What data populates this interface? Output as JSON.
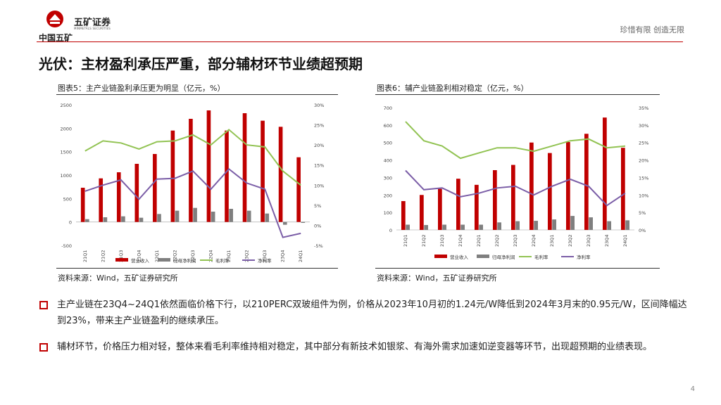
{
  "header": {
    "logo_cn": "中国五矿",
    "brand": "五矿证券",
    "brand_en": "MINMETALS SECURITIES",
    "slogan": "珍惜有限 创造无限"
  },
  "title": "光伏：主材盈利承压严重，部分辅材环节业绩超预期",
  "charts_meta": [
    {
      "title": "图表5：主产业链盈利承压更为明显（亿元，%）",
      "source": "资料来源：Wind，五矿证券研究所"
    },
    {
      "title": "图表6：辅产业链盈利相对稳定（亿元，%）",
      "source": "资料来源：Wind，五矿证券研究所"
    }
  ],
  "bullets": [
    {
      "text": "主产业链在23Q4~24Q1依然面临价格下行，以210PERC双玻组件为例，价格从2023年10月初的1.24元/W降低到2024年3月末的0.95元/W，区间降幅达到23%，带来主产业链盈利的继续承压。"
    },
    {
      "text": "辅材环节，价格压力相对轻，整体来看毛利率维持相对稳定，其中部分有新技术如银浆、有海外需求加速如逆变器等环节，出现超预期的业绩表现。"
    }
  ],
  "page_number": "4",
  "colors": {
    "accent": "#c00000",
    "bar1": "#c00000",
    "bar2": "#7f7f7f",
    "line1": "#92c353",
    "line2": "#7b5ea7"
  },
  "chart_data": [
    {
      "type": "bar",
      "categories": [
        "21Q1",
        "21Q2",
        "21Q3",
        "21Q4",
        "22Q1",
        "22Q2",
        "22Q3",
        "22Q4",
        "23Q1",
        "23Q2",
        "23Q3",
        "23Q4",
        "24Q1"
      ],
      "series": [
        {
          "name": "营业收入",
          "kind": "bar",
          "axis": "left",
          "values": [
            730,
            930,
            1060,
            1240,
            1450,
            1950,
            2200,
            2380,
            1950,
            2320,
            2160,
            2030,
            1380
          ]
        },
        {
          "name": "归母净利润",
          "kind": "bar",
          "axis": "left",
          "values": [
            60,
            100,
            120,
            90,
            170,
            240,
            300,
            220,
            280,
            240,
            180,
            -60,
            -20
          ]
        },
        {
          "name": "毛利率",
          "kind": "line",
          "axis": "right",
          "values": [
            18.5,
            21,
            20.5,
            19,
            20.8,
            21,
            22.5,
            20,
            23.8,
            20,
            19.5,
            13.5,
            10
          ]
        },
        {
          "name": "净利率",
          "kind": "line",
          "axis": "right",
          "values": [
            8.5,
            10,
            11.3,
            6.5,
            11.5,
            11.7,
            13.5,
            9,
            14,
            10.5,
            9,
            -3,
            -2
          ]
        }
      ],
      "ylim_left": [
        -500,
        2500
      ],
      "yticks_left": [
        -500,
        0,
        500,
        1000,
        1500,
        2000,
        2500
      ],
      "ylim_right": [
        -5,
        30
      ],
      "yticks_right": [
        -5,
        0,
        5,
        10,
        15,
        20,
        25,
        30
      ]
    },
    {
      "type": "bar",
      "categories": [
        "21Q1",
        "21Q2",
        "21Q3",
        "21Q4",
        "22Q1",
        "22Q2",
        "22Q3",
        "22Q4",
        "23Q1",
        "23Q2",
        "23Q3",
        "23Q4",
        "24Q1"
      ],
      "series": [
        {
          "name": "营业收入",
          "kind": "bar",
          "axis": "left",
          "values": [
            165,
            200,
            235,
            293,
            258,
            342,
            372,
            500,
            440,
            503,
            550,
            643,
            470
          ]
        },
        {
          "name": "归母净利润",
          "kind": "bar",
          "axis": "left",
          "values": [
            30,
            28,
            30,
            30,
            30,
            43,
            50,
            52,
            60,
            80,
            72,
            50,
            55
          ]
        },
        {
          "name": "毛利率",
          "kind": "line",
          "axis": "right",
          "values": [
            31,
            25.5,
            24,
            20.5,
            22,
            23.5,
            23.5,
            22.5,
            24,
            25.5,
            26,
            23.5,
            24
          ]
        },
        {
          "name": "净利率",
          "kind": "line",
          "axis": "right",
          "values": [
            17,
            11.5,
            12,
            9.5,
            10.5,
            12,
            12.5,
            10,
            12.5,
            14.5,
            12.5,
            7,
            10.5
          ]
        }
      ],
      "ylim_left": [
        0,
        700
      ],
      "yticks_left": [
        0,
        100,
        200,
        300,
        400,
        500,
        600,
        700
      ],
      "ylim_right": [
        0,
        35
      ],
      "yticks_right": [
        0,
        5,
        10,
        15,
        20,
        25,
        30,
        35
      ]
    }
  ]
}
